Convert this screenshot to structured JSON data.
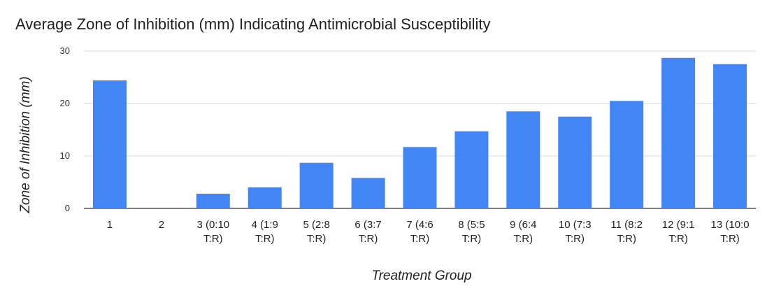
{
  "chart_data": {
    "type": "bar",
    "title": "Average Zone of Inhibition (mm) Indicating Antimicrobial Susceptibility",
    "xlabel": "Treatment Group",
    "ylabel": "Zone of Inhibition (mm)",
    "ylim": [
      0,
      30
    ],
    "yticks": [
      "0",
      "10",
      "20",
      "30"
    ],
    "categories": [
      [
        "1"
      ],
      [
        "2"
      ],
      [
        "3 (0:10",
        "T:R)"
      ],
      [
        "4 (1:9",
        "T:R)"
      ],
      [
        "5 (2:8",
        "T:R)"
      ],
      [
        "6 (3:7",
        "T:R)"
      ],
      [
        "7 (4:6",
        "T:R)"
      ],
      [
        "8 (5:5",
        "T:R)"
      ],
      [
        "9 (6:4",
        "T:R)"
      ],
      [
        "10 (7:3",
        "T:R)"
      ],
      [
        "11 (8:2",
        "T:R)"
      ],
      [
        "12 (9:1",
        "T:R)"
      ],
      [
        "13 (10:0",
        "T:R)"
      ]
    ],
    "values": [
      24.4,
      0,
      2.8,
      4.0,
      8.7,
      5.8,
      11.7,
      14.7,
      18.5,
      17.5,
      20.5,
      28.7,
      27.5
    ],
    "grid": true,
    "bar_color": "#4285f4"
  }
}
